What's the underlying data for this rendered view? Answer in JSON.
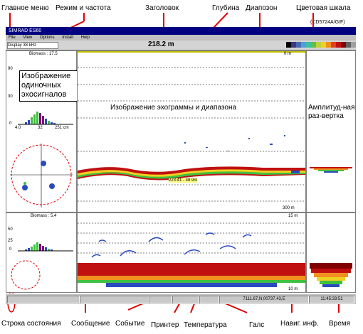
{
  "window": {
    "title": "SIMRAD ES60",
    "image_code": "(CD5724A/GIF)"
  },
  "menu": [
    "File",
    "View",
    "Options",
    "Install",
    "Help"
  ],
  "menu_extra": "Help SIMRAD ES60",
  "toolbar": {
    "mode_label": "Display 38 kHz",
    "depth_value": "218.2 m"
  },
  "palette": [
    "#000000",
    "#3a3a80",
    "#4a6ab0",
    "#50a0d8",
    "#40c0a0",
    "#60c040",
    "#c0d040",
    "#f0d020",
    "#f09020",
    "#e04020",
    "#c01010",
    "#800000",
    "#606060",
    "#a0a0a0"
  ],
  "callouts": {
    "main_menu": "Главное меню",
    "mode_freq": "Режим и частота",
    "header": "Заголовок",
    "depth": "Глубина",
    "range": "Диапозон",
    "color_scale": "Цветовая шкала",
    "status_line": "Строка состояния",
    "message": "Сообщение",
    "event": "Событие",
    "printer": "Принтер",
    "temperature": "Температура",
    "tack": "Галс",
    "nav_info": "Навиг. инф.",
    "time": "Время"
  },
  "panels": {
    "top_biomass": "Biomass : 17.5",
    "bottom_biomass": "Biomass : 5.4",
    "single_echo_label": "Изображение одиночных эхосигналов",
    "echogram_label": "Изображение эхограммы и диапазона",
    "amplitude_label": "Амплитуд-ная раз-вертка",
    "hist_axis": [
      "4.0",
      "32",
      "251 cm"
    ],
    "hist_yticks": [
      "90",
      "30",
      "0"
    ],
    "range_top": "0 m",
    "range_bottom": "300 m",
    "bottom_range_top": "15 m",
    "bottom_range_bottom": "10 m",
    "depth_marker": "223.41 - 48.9m",
    "hist2_yticks": [
      "50",
      "25",
      "0"
    ]
  },
  "status": {
    "nav": "7111.67,N,00737.43,E",
    "time": "11:45:33:51"
  }
}
